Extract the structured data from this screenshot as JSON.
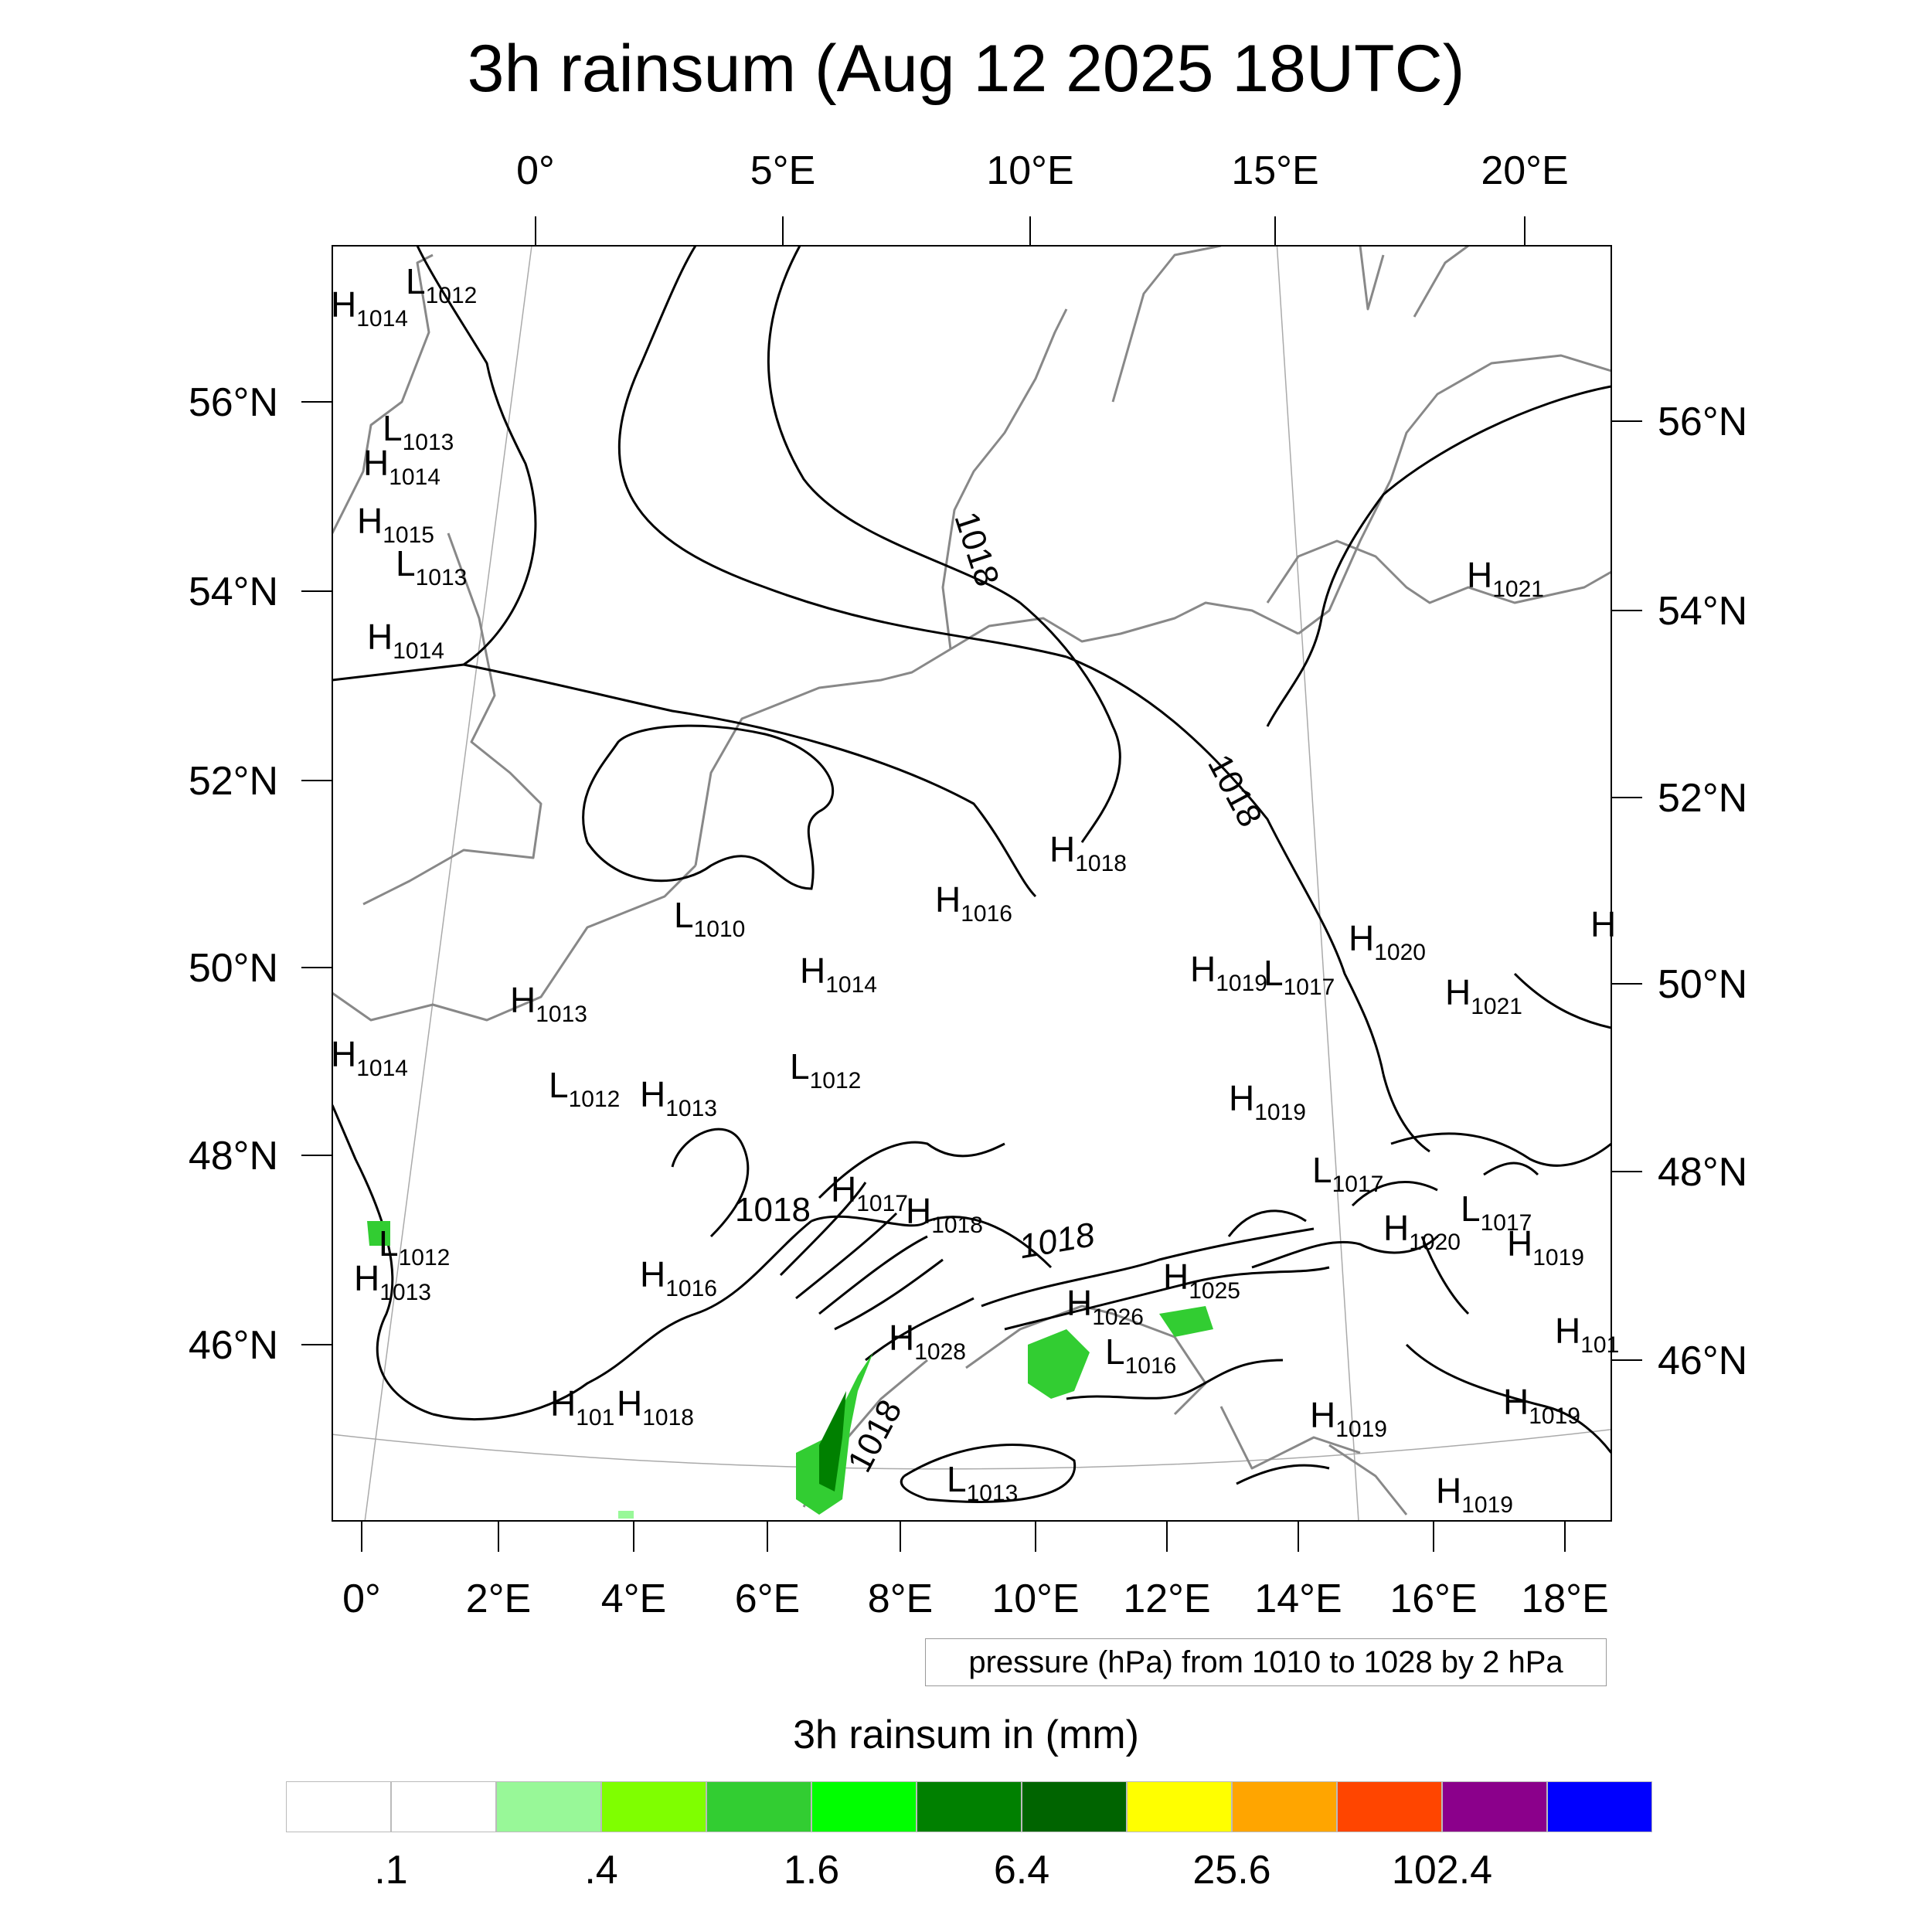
{
  "title": "3h rainsum (Aug 12 2025 18UTC)",
  "top_lon_labels": [
    "0°",
    "5°E",
    "10°E",
    "15°E",
    "20°E"
  ],
  "bottom_lon_labels": [
    "0°",
    "2°E",
    "4°E",
    "6°E",
    "8°E",
    "10°E",
    "12°E",
    "14°E",
    "16°E",
    "18°E"
  ],
  "left_lat_labels": [
    "56°N",
    "54°N",
    "52°N",
    "50°N",
    "48°N",
    "46°N"
  ],
  "right_lat_labels": [
    "56°N",
    "54°N",
    "52°N",
    "50°N",
    "48°N",
    "46°N"
  ],
  "pressure_legend": "pressure (hPa) from 1010 to 1028 by 2 hPa",
  "colorbar": {
    "title": "3h rainsum in (mm)",
    "colors": [
      "#ffffff",
      "#ffffff",
      "#98f898",
      "#7fff00",
      "#32cd32",
      "#00ff00",
      "#008000",
      "#006400",
      "#ffff00",
      "#ffa500",
      "#ff4500",
      "#8b008b",
      "#0000ff"
    ],
    "labels": [
      ".1",
      ".4",
      "1.6",
      "6.4",
      "25.6",
      "102.4"
    ]
  },
  "contour_labels": [
    "1018",
    "1018",
    "1018",
    "1018",
    "1018"
  ],
  "pressure_centers": [
    {
      "type": "H",
      "value": "1014"
    },
    {
      "type": "L",
      "value": "1012"
    },
    {
      "type": "L",
      "value": "1013"
    },
    {
      "type": "H",
      "value": "1014"
    },
    {
      "type": "H",
      "value": "1015"
    },
    {
      "type": "L",
      "value": "1013"
    },
    {
      "type": "H",
      "value": "1014"
    },
    {
      "type": "H",
      "value": "1021"
    },
    {
      "type": "H",
      "value": "1018"
    },
    {
      "type": "H",
      "value": "1016"
    },
    {
      "type": "L",
      "value": "1010"
    },
    {
      "type": "H",
      "value": "1014"
    },
    {
      "type": "H",
      "value": "1013"
    },
    {
      "type": "H",
      "value": "1019"
    },
    {
      "type": "L",
      "value": "1017"
    },
    {
      "type": "H",
      "value": "1020"
    },
    {
      "type": "H",
      "value": "1021"
    },
    {
      "type": "H",
      "value": "1014"
    },
    {
      "type": "L",
      "value": "1012"
    },
    {
      "type": "H",
      "value": "1013"
    },
    {
      "type": "L",
      "value": "1012"
    },
    {
      "type": "H",
      "value": "1019"
    },
    {
      "type": "H",
      "value": "1017"
    },
    {
      "type": "H",
      "value": "1018"
    },
    {
      "type": "L",
      "value": "1017"
    },
    {
      "type": "L",
      "value": "1017"
    },
    {
      "type": "H",
      "value": "1020"
    },
    {
      "type": "H",
      "value": "1019"
    },
    {
      "type": "L",
      "value": "1012"
    },
    {
      "type": "H",
      "value": "1013"
    },
    {
      "type": "H",
      "value": "1016"
    },
    {
      "type": "H",
      "value": "1025"
    },
    {
      "type": "H",
      "value": "1026"
    },
    {
      "type": "L",
      "value": "1016"
    },
    {
      "type": "H",
      "value": "1028"
    },
    {
      "type": "H",
      "value": "101"
    },
    {
      "type": "H",
      "value": "1018"
    },
    {
      "type": "H",
      "value": "1019"
    },
    {
      "type": "H",
      "value": "1019"
    },
    {
      "type": "L",
      "value": "1013"
    },
    {
      "type": "H",
      "value": "1019"
    },
    {
      "type": "H",
      "value": "101"
    },
    {
      "type": "H",
      "value": ""
    }
  ]
}
